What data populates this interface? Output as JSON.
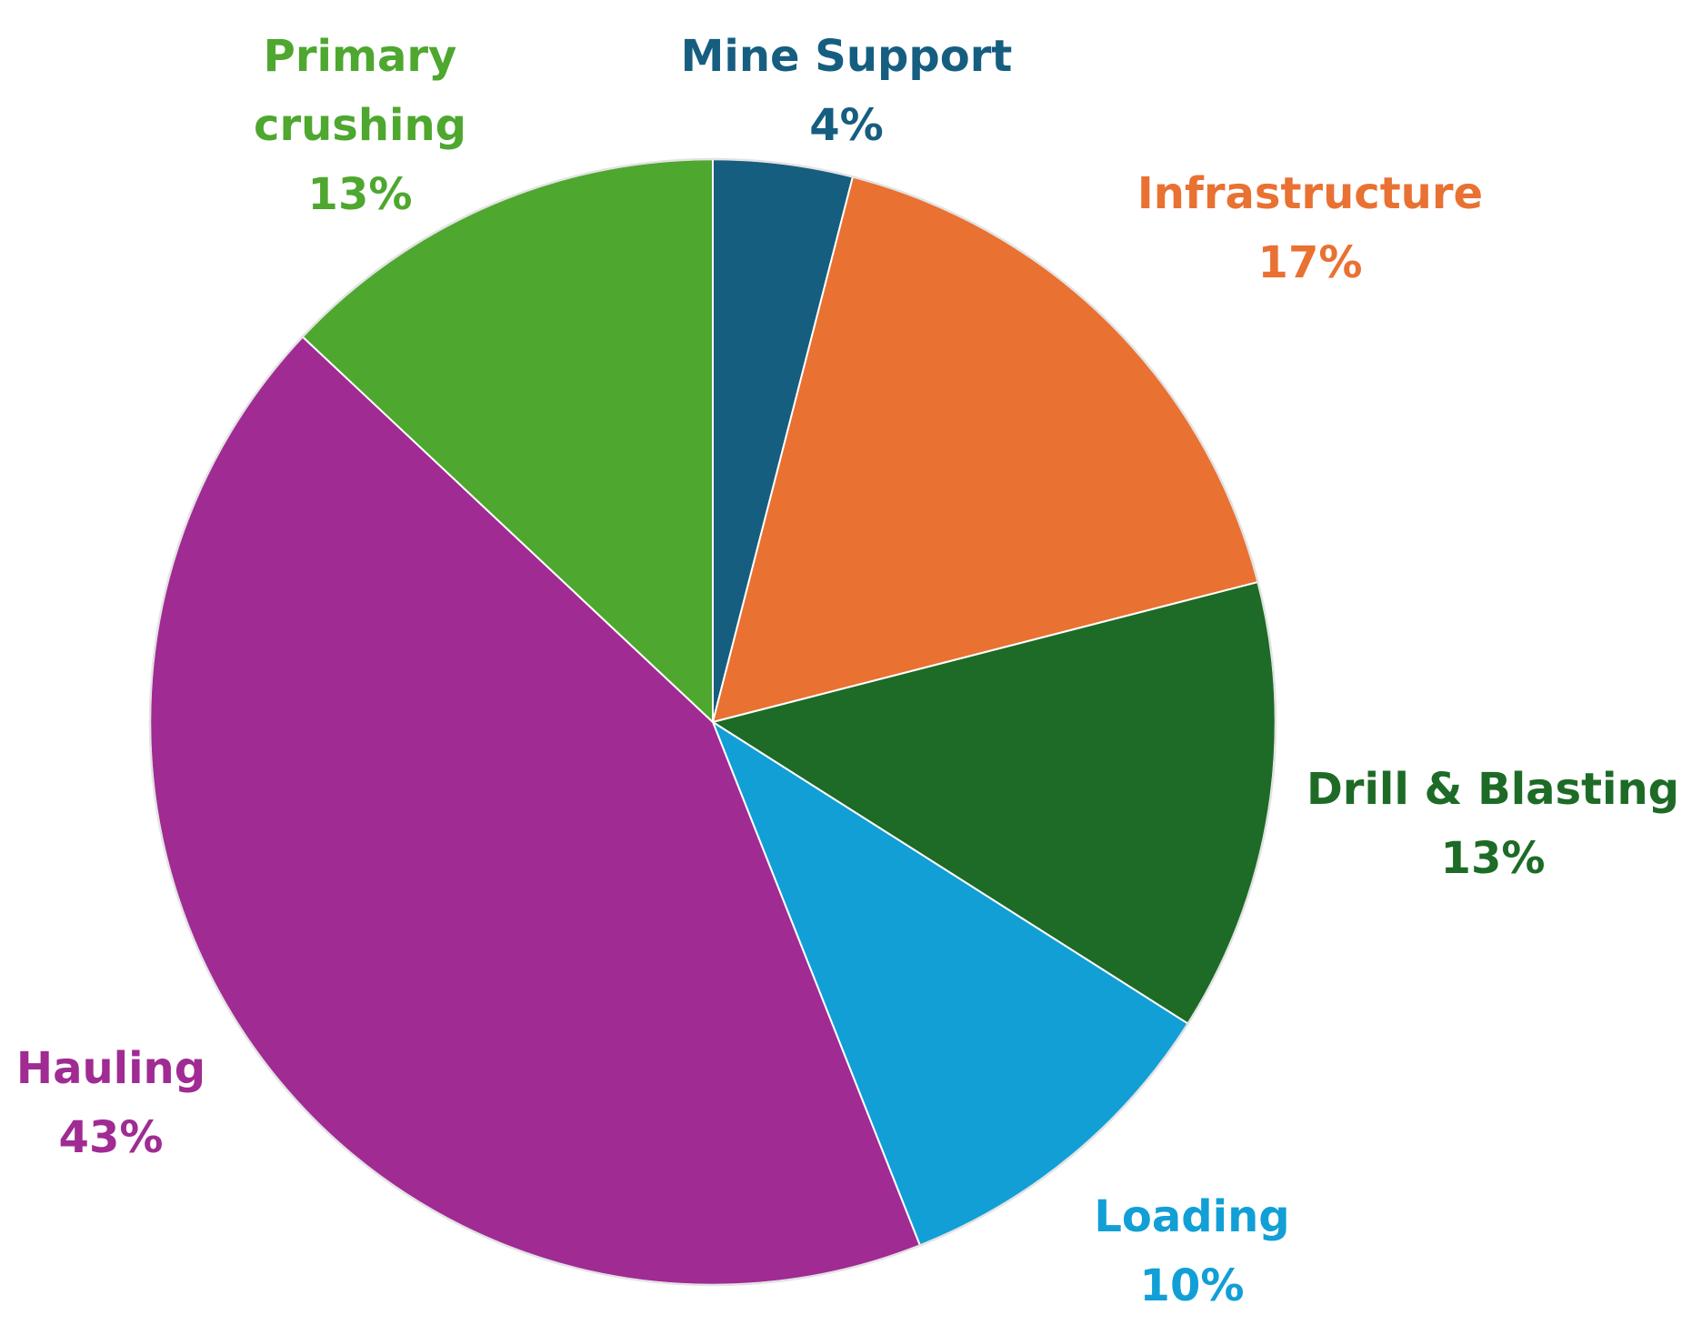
{
  "chart_data": {
    "type": "pie",
    "title": "",
    "slices": [
      {
        "label": "Mine Support",
        "value": 4,
        "display": "4%",
        "color": "#165E80"
      },
      {
        "label": "Infrastructure",
        "value": 17,
        "display": "17%",
        "color": "#E97132"
      },
      {
        "label": "Drill & Blasting",
        "value": 13,
        "display": "13%",
        "color": "#1D6B26"
      },
      {
        "label": "Loading",
        "value": 10,
        "display": "10%",
        "color": "#119FD6"
      },
      {
        "label": "Hauling",
        "value": 43,
        "display": "43%",
        "color": "#A02B93"
      },
      {
        "label": "Primary crushing",
        "value": 13,
        "display": "13%",
        "color": "#4EA72E"
      }
    ],
    "legend": "none",
    "data_labels": "outside, category name and percentage"
  }
}
